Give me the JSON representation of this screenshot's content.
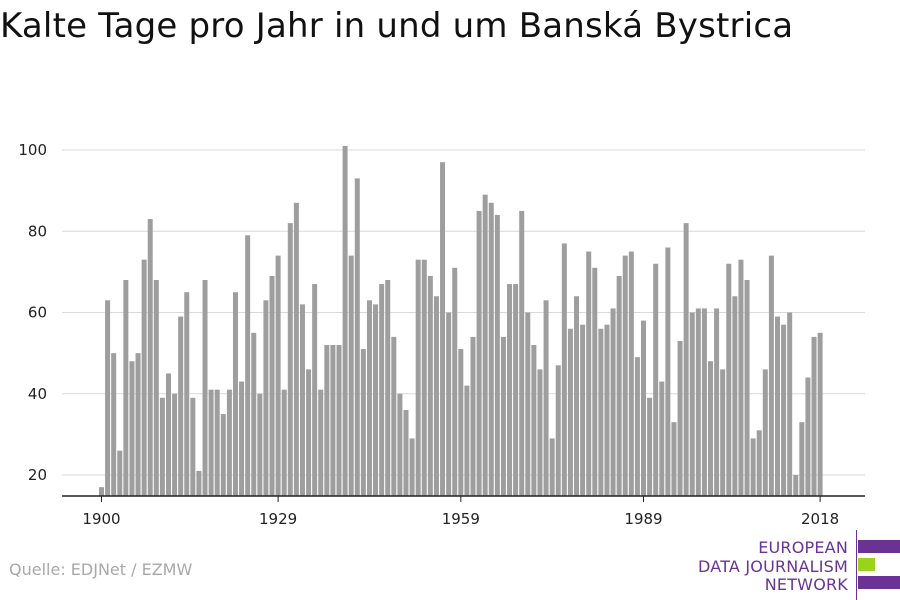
{
  "title": "Kalte Tage pro Jahr in und um Banská Bystrica",
  "source": "Quelle: EDJNet / EZMW",
  "logo": {
    "lines": [
      "EUROPEAN",
      "DATA JOURNALISM",
      "NETWORK"
    ],
    "colors": {
      "purple": "#6a3393",
      "green": "#9bd31c"
    }
  },
  "chart_data": {
    "type": "bar",
    "title": "Kalte Tage pro Jahr in und um Banská Bystrica",
    "xlabel": "",
    "ylabel": "",
    "x_start": 1900,
    "x_ticks": [
      1900,
      1929,
      1959,
      1989,
      2018
    ],
    "y_ticks": [
      20,
      40,
      60,
      80,
      100
    ],
    "ylim": [
      15,
      102
    ],
    "grid": true,
    "bar_color": "#9e9e9e",
    "values": [
      17,
      63,
      50,
      26,
      68,
      48,
      50,
      73,
      83,
      68,
      39,
      45,
      40,
      59,
      65,
      39,
      21,
      68,
      41,
      41,
      35,
      41,
      65,
      43,
      79,
      55,
      40,
      63,
      69,
      74,
      41,
      82,
      87,
      62,
      46,
      67,
      41,
      52,
      52,
      52,
      101,
      74,
      93,
      51,
      63,
      62,
      67,
      68,
      54,
      40,
      36,
      29,
      73,
      73,
      69,
      64,
      97,
      60,
      71,
      51,
      42,
      54,
      85,
      89,
      87,
      84,
      54,
      67,
      67,
      85,
      60,
      52,
      46,
      63,
      29,
      47,
      77,
      56,
      64,
      57,
      75,
      71,
      56,
      57,
      61,
      69,
      74,
      75,
      49,
      58,
      39,
      72,
      43,
      76,
      33,
      53,
      82,
      60,
      61,
      61,
      48,
      61,
      46,
      72,
      64,
      73,
      68,
      29,
      31,
      46,
      74,
      59,
      57,
      60,
      20,
      33,
      44,
      54,
      55
    ]
  }
}
